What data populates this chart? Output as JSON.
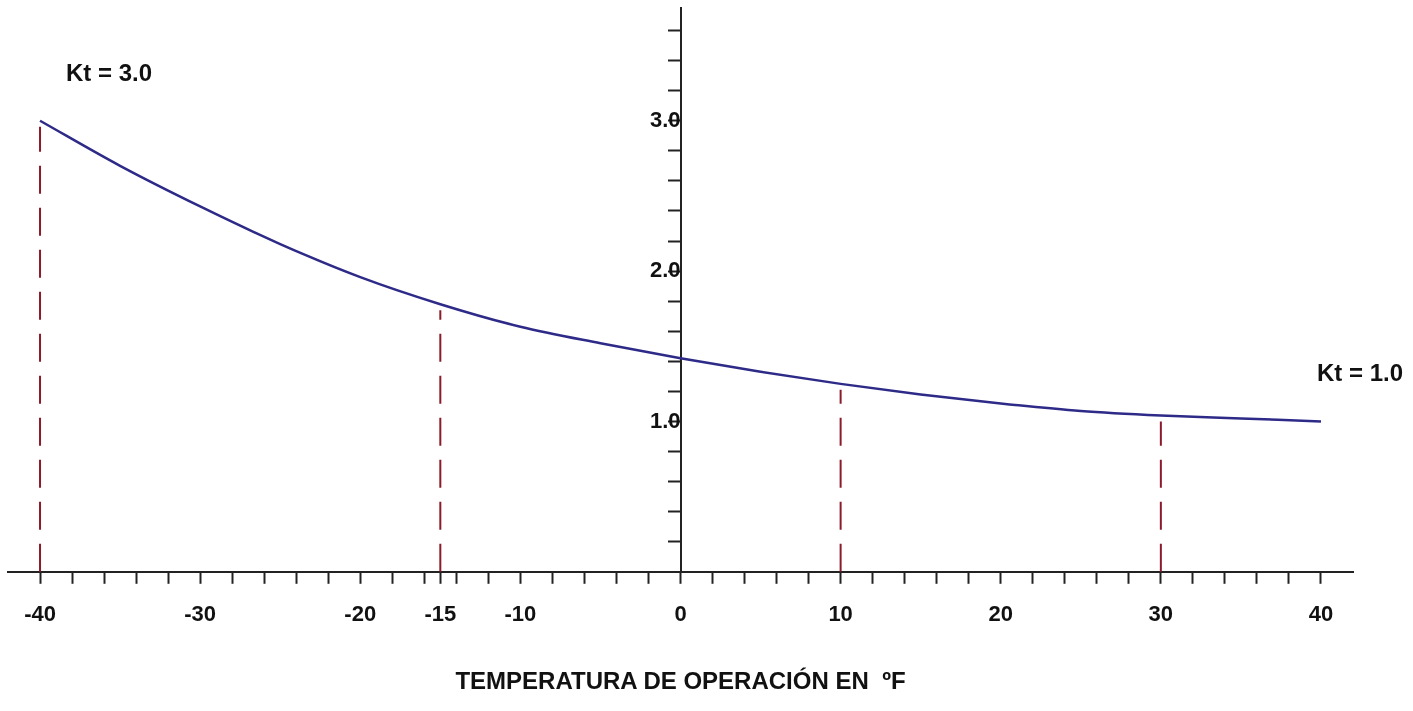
{
  "chart_data": {
    "type": "line",
    "xlabel": "TEMPERATURA DE OPERACIÓN EN  ºF",
    "x": [
      -40,
      -35,
      -30,
      -25,
      -20,
      -15,
      -10,
      -5,
      0,
      5,
      10,
      15,
      20,
      25,
      30,
      35,
      40
    ],
    "series": [
      {
        "color": "#2e2a88",
        "values": [
          3.0,
          2.7,
          2.43,
          2.18,
          1.96,
          1.78,
          1.63,
          1.52,
          1.42,
          1.33,
          1.25,
          1.18,
          1.12,
          1.07,
          1.04,
          1.02,
          1.0
        ]
      }
    ],
    "xlim": [
      -42,
      42
    ],
    "xticks": [
      {
        "value": -40,
        "label": "-40"
      },
      {
        "value": -38,
        "label": null
      },
      {
        "value": -36,
        "label": null
      },
      {
        "value": -34,
        "label": null
      },
      {
        "value": -32,
        "label": null
      },
      {
        "value": -30,
        "label": "-30"
      },
      {
        "value": -28,
        "label": null
      },
      {
        "value": -26,
        "label": null
      },
      {
        "value": -24,
        "label": null
      },
      {
        "value": -22,
        "label": null
      },
      {
        "value": -20,
        "label": "-20"
      },
      {
        "value": -18,
        "label": null
      },
      {
        "value": -16,
        "label": null
      },
      {
        "value": -15,
        "label": "-15"
      },
      {
        "value": -14,
        "label": null
      },
      {
        "value": -12,
        "label": null
      },
      {
        "value": -10,
        "label": "-10"
      },
      {
        "value": -8,
        "label": null
      },
      {
        "value": -6,
        "label": null
      },
      {
        "value": -4,
        "label": null
      },
      {
        "value": -2,
        "label": null
      },
      {
        "value": 0,
        "label": "0"
      },
      {
        "value": 2,
        "label": null
      },
      {
        "value": 4,
        "label": null
      },
      {
        "value": 6,
        "label": null
      },
      {
        "value": 8,
        "label": null
      },
      {
        "value": 10,
        "label": "10"
      },
      {
        "value": 12,
        "label": null
      },
      {
        "value": 14,
        "label": null
      },
      {
        "value": 16,
        "label": null
      },
      {
        "value": 18,
        "label": null
      },
      {
        "value": 20,
        "label": "20"
      },
      {
        "value": 22,
        "label": null
      },
      {
        "value": 24,
        "label": null
      },
      {
        "value": 26,
        "label": null
      },
      {
        "value": 28,
        "label": null
      },
      {
        "value": 30,
        "label": "30"
      },
      {
        "value": 32,
        "label": null
      },
      {
        "value": 34,
        "label": null
      },
      {
        "value": 36,
        "label": null
      },
      {
        "value": 38,
        "label": null
      },
      {
        "value": 40,
        "label": "40"
      }
    ],
    "ylim": [
      0,
      3.75
    ],
    "yticks": [
      {
        "value": 0.2,
        "label": null
      },
      {
        "value": 0.4,
        "label": null
      },
      {
        "value": 0.6,
        "label": null
      },
      {
        "value": 0.8,
        "label": null
      },
      {
        "value": 1.0,
        "label": "1.0"
      },
      {
        "value": 1.2,
        "label": null
      },
      {
        "value": 1.4,
        "label": null
      },
      {
        "value": 1.6,
        "label": null
      },
      {
        "value": 1.8,
        "label": null
      },
      {
        "value": 2.0,
        "label": "2.0"
      },
      {
        "value": 2.2,
        "label": null
      },
      {
        "value": 2.4,
        "label": null
      },
      {
        "value": 2.6,
        "label": null
      },
      {
        "value": 2.8,
        "label": null
      },
      {
        "value": 3.0,
        "label": "3.0"
      },
      {
        "value": 3.2,
        "label": null
      },
      {
        "value": 3.4,
        "label": null
      },
      {
        "value": 3.6,
        "label": null
      }
    ],
    "ref_lines": [
      {
        "axis": "x",
        "value": -40,
        "color": "#8b1a2a",
        "line_style": "dashed"
      },
      {
        "axis": "x",
        "value": -15,
        "color": "#8b1a2a",
        "line_style": "dashed"
      },
      {
        "axis": "x",
        "value": 10,
        "color": "#8b1a2a",
        "line_style": "dashed"
      },
      {
        "axis": "x",
        "value": 30,
        "color": "#8b1a2a",
        "line_style": "dashed"
      }
    ],
    "annotations": [
      {
        "text": "Kt = 3.0",
        "x": -40,
        "y": 3.0
      },
      {
        "text": "Kt = 1.0",
        "x": 40,
        "y": 1.0
      }
    ],
    "grid": false,
    "legend": false,
    "marker": "none",
    "line_style": "solid"
  }
}
